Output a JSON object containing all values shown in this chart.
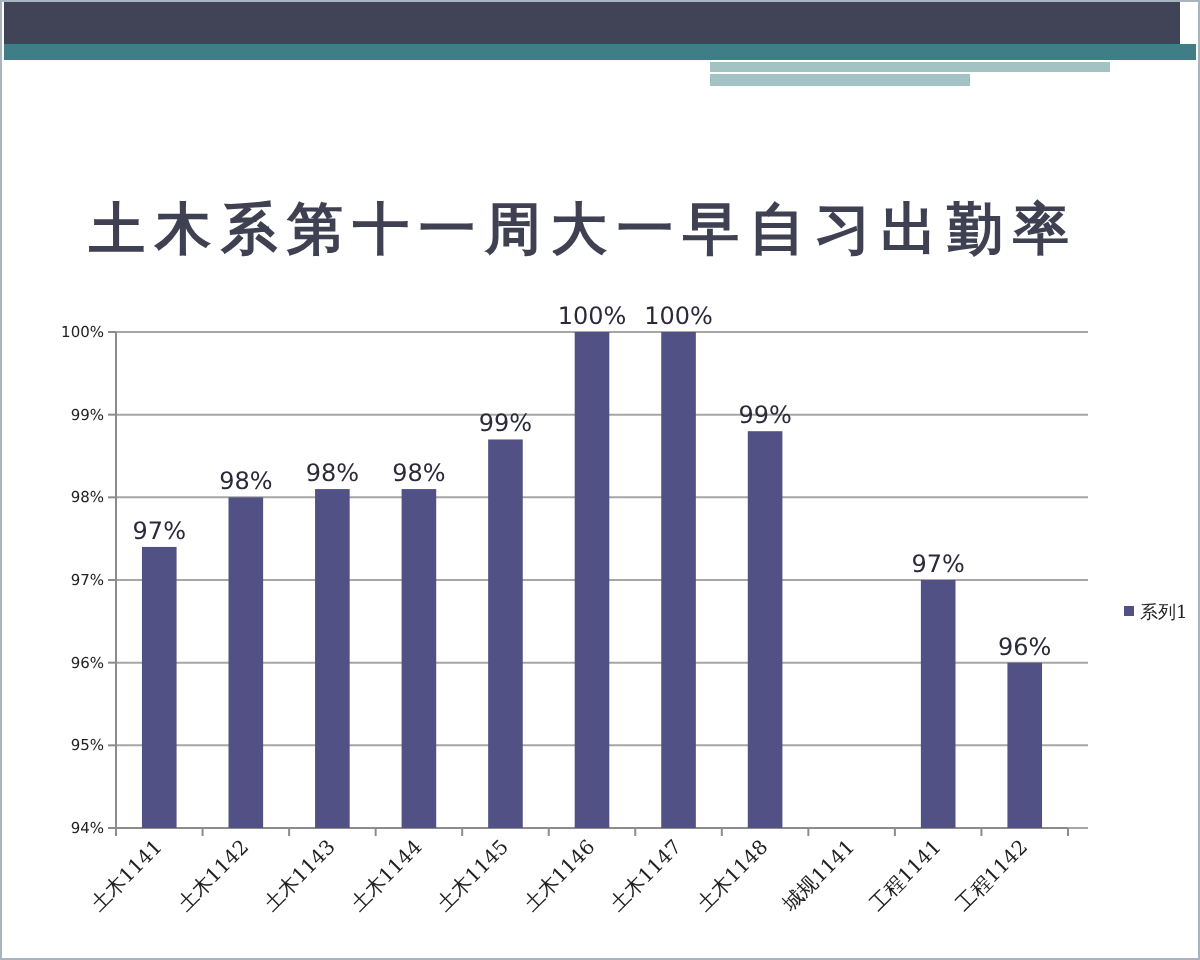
{
  "chart_data": {
    "type": "bar",
    "title": "土木系第十一周大一早自习出勤率",
    "categories": [
      "土木1141",
      "土木1142",
      "土木1143",
      "土木1144",
      "土木1145",
      "土木1146",
      "土木1147",
      "土木1148",
      "城规1141",
      "工程1141",
      "工程1142"
    ],
    "series": [
      {
        "name": "系列1",
        "color": "#525186",
        "values": [
          97.4,
          98.0,
          98.1,
          98.1,
          98.7,
          100,
          100,
          98.8,
          null,
          97.0,
          96.0
        ],
        "value_labels": [
          "97%",
          "98%",
          "98%",
          "98%",
          "99%",
          "100%",
          "100%",
          "99%",
          null,
          "97%",
          "96%"
        ]
      }
    ],
    "ylim": [
      94,
      100
    ],
    "yticks": [
      {
        "value": 94,
        "label": "94%"
      },
      {
        "value": 95,
        "label": "95%"
      },
      {
        "value": 96,
        "label": "96%"
      },
      {
        "value": 97,
        "label": "97%"
      },
      {
        "value": 98,
        "label": "98%"
      },
      {
        "value": 99,
        "label": "99%"
      },
      {
        "value": 100,
        "label": "100%"
      }
    ],
    "grid": "y",
    "legend": "right"
  }
}
